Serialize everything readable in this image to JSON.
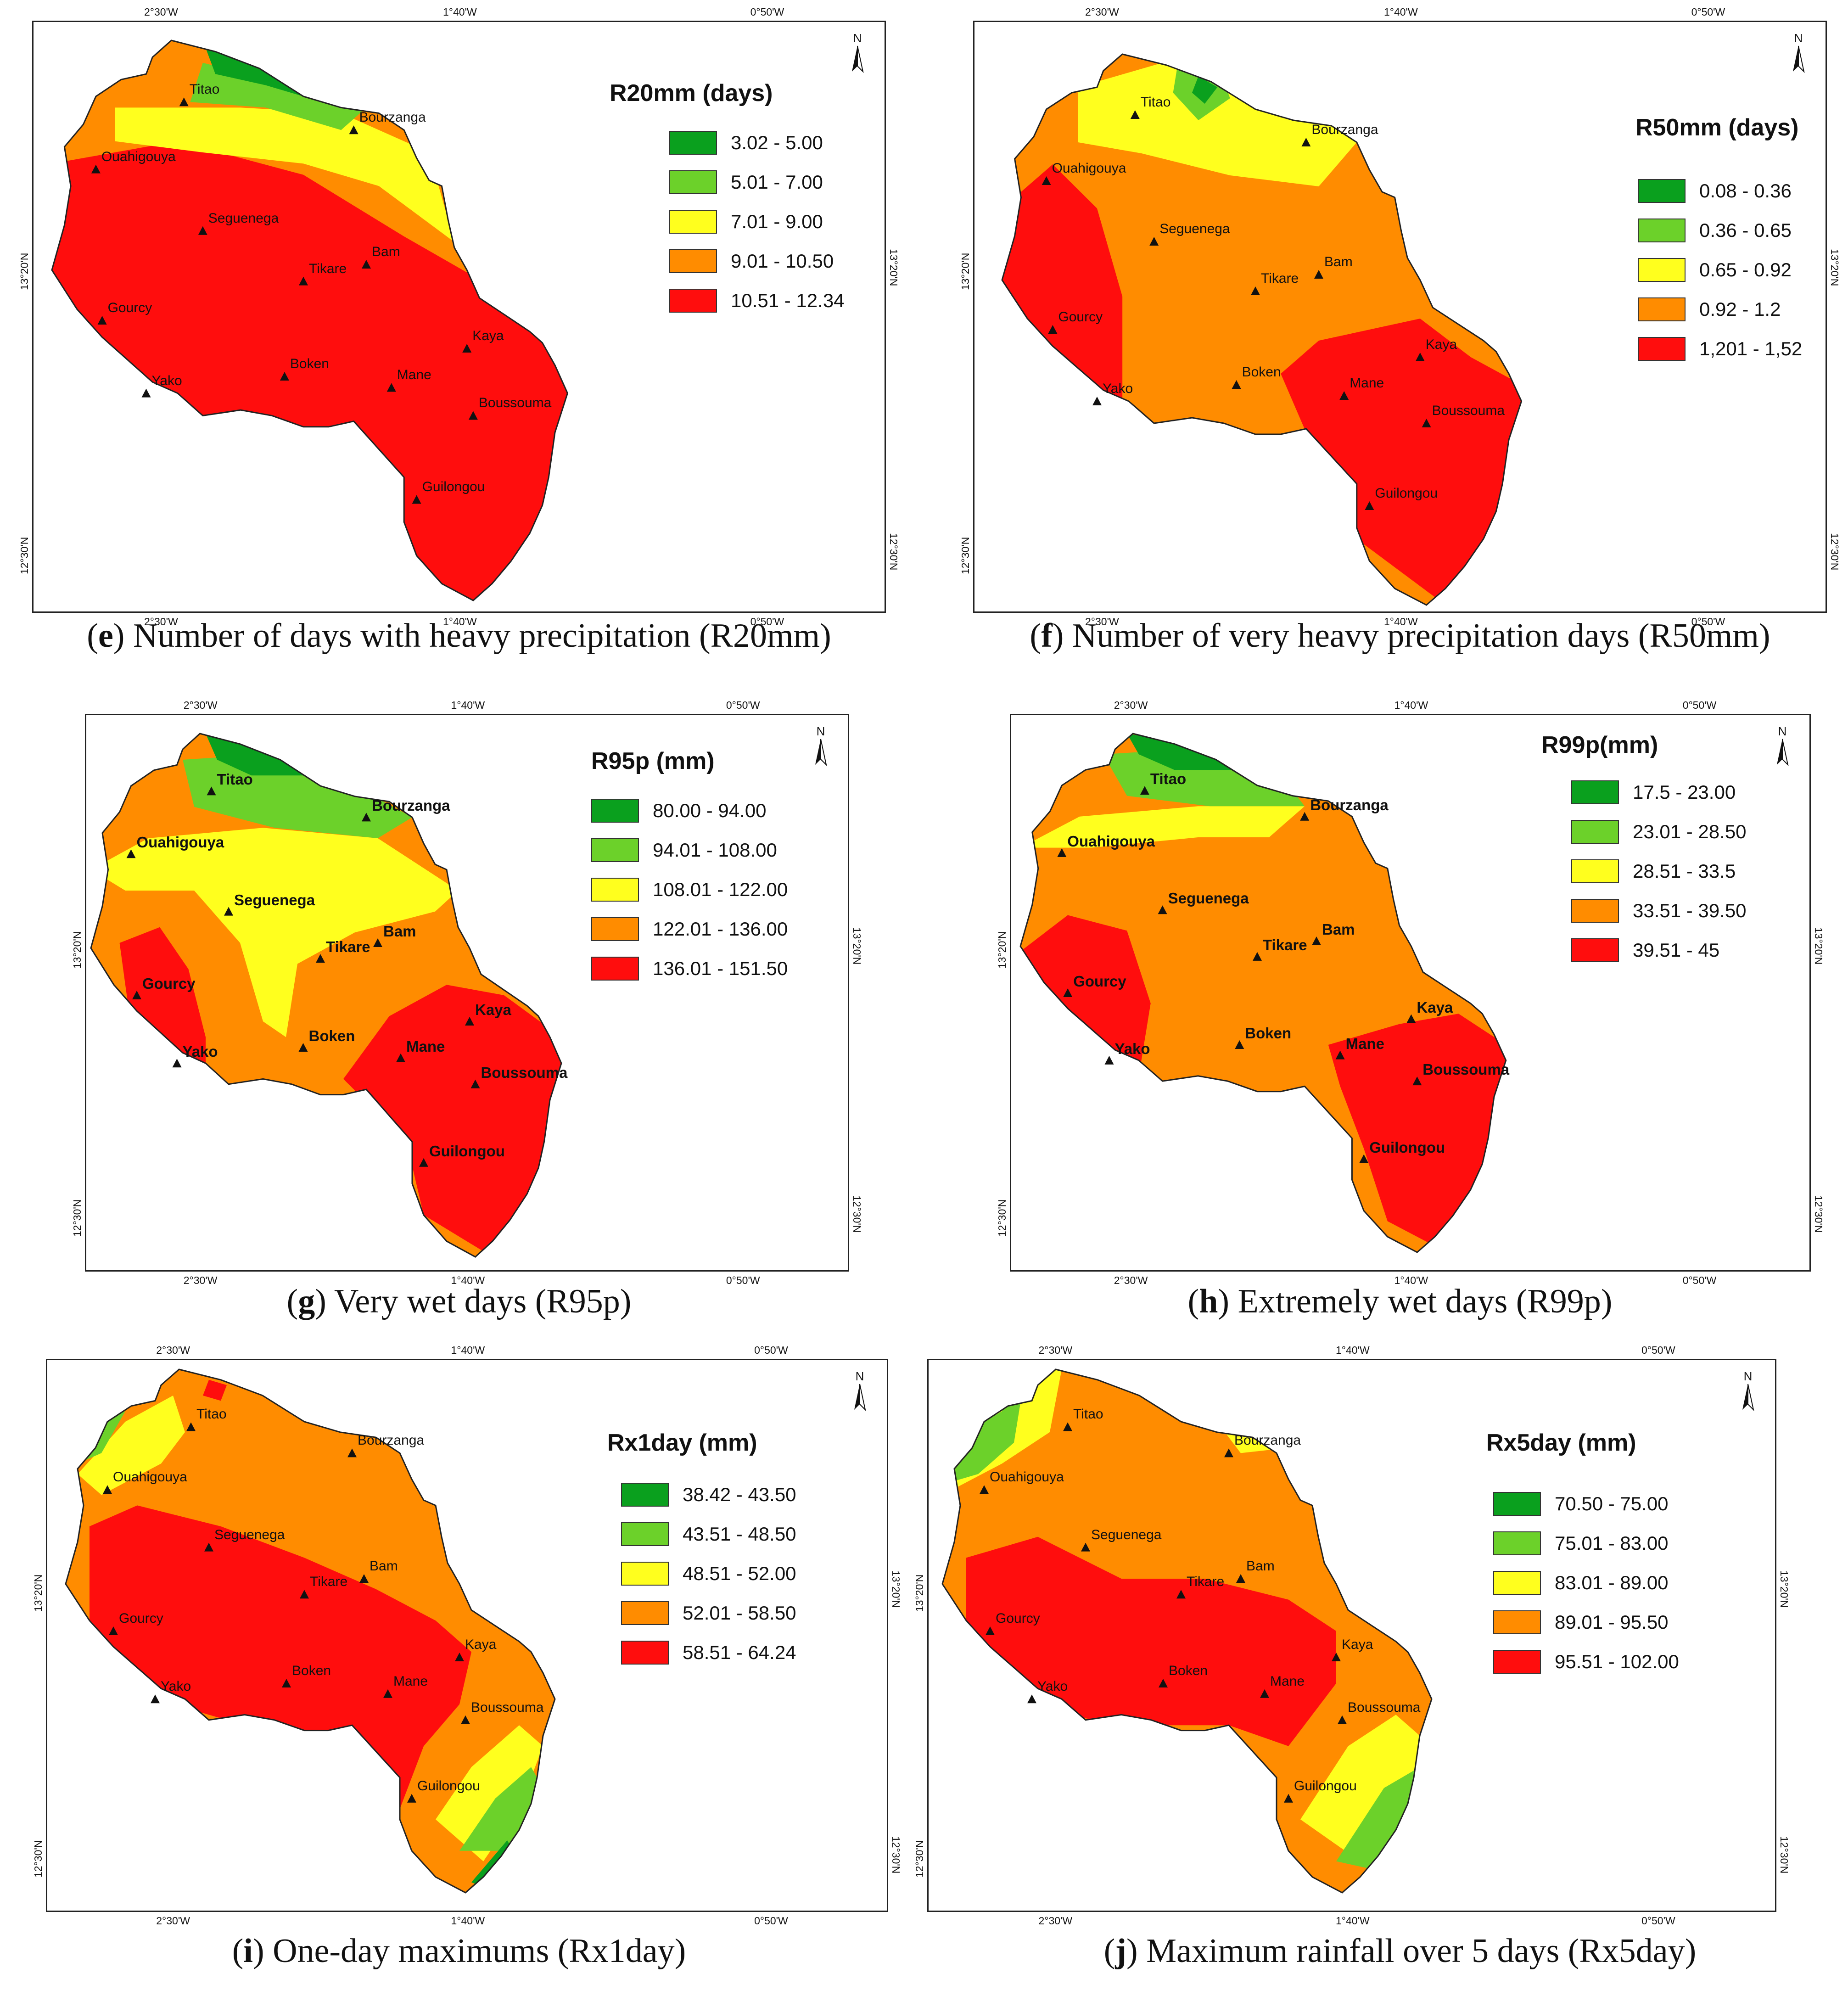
{
  "colors": {
    "dark_green": "#0aa01e",
    "light_green": "#6cd12a",
    "yellow": "#ffff1e",
    "orange": "#ff8c00",
    "red": "#ff0d0d",
    "outline": "#222222"
  },
  "icons": {
    "north_arrow": "north-arrow-icon",
    "town_marker": "triangle-icon"
  },
  "panels": [
    {
      "id": "e",
      "legend_title": "R20mm (days)",
      "legend": [
        "3.02 - 5.00",
        "5.01 - 7.00",
        "7.01 - 9.00",
        "9.01 - 10.50",
        "10.51 - 12.34"
      ],
      "caption_letter": "e",
      "caption_text": " Number of days with heavy precipitation (R20mm)",
      "bold_labels": false,
      "lon_ticks": [
        "2°30'W",
        "1°40'W",
        "0°50'W"
      ],
      "lat_ticks": [
        "13°20'N",
        "12°30'N"
      ],
      "north": "N"
    },
    {
      "id": "f",
      "legend_title": "R50mm (days)",
      "legend": [
        "0.08 - 0.36",
        "0.36 - 0.65",
        "0.65 - 0.92",
        "0.92 - 1.2",
        "1,201 - 1,52"
      ],
      "caption_letter": "f",
      "caption_text": " Number of very heavy precipitation days (R50mm)",
      "bold_labels": false,
      "lon_ticks": [
        "2°30'W",
        "1°40'W",
        "0°50'W"
      ],
      "lat_ticks": [
        "13°20'N",
        "12°30'N"
      ],
      "north": "N"
    },
    {
      "id": "g",
      "legend_title": "R95p (mm)",
      "legend": [
        "80.00 - 94.00",
        "94.01 - 108.00",
        "108.01 - 122.00",
        "122.01 - 136.00",
        "136.01 - 151.50"
      ],
      "caption_letter": "g",
      "caption_text": " Very wet days (R95p)",
      "bold_labels": true,
      "lon_ticks": [
        "2°30'W",
        "1°40'W",
        "0°50'W"
      ],
      "lat_ticks": [
        "13°20'N",
        "12°30'N"
      ],
      "north": "N"
    },
    {
      "id": "h",
      "legend_title": "R99p(mm)",
      "legend": [
        "17.5 - 23.00",
        "23.01 - 28.50",
        "28.51 - 33.5",
        "33.51 - 39.50",
        "39.51 - 45"
      ],
      "caption_letter": "h",
      "caption_text": " Extremely wet days (R99p)",
      "bold_labels": true,
      "lon_ticks": [
        "2°30'W",
        "1°40'W",
        "0°50'W"
      ],
      "lat_ticks": [
        "13°20'N",
        "12°30'N"
      ],
      "north": "N"
    },
    {
      "id": "i",
      "legend_title": "Rx1day (mm)",
      "legend": [
        "38.42 - 43.50",
        "43.51 - 48.50",
        "48.51 - 52.00",
        "52.01 - 58.50",
        "58.51 - 64.24"
      ],
      "caption_letter": "i",
      "caption_text": " One-day maximums (Rx1day)",
      "bold_labels": false,
      "lon_ticks": [
        "2°30'W",
        "1°40'W",
        "0°50'W"
      ],
      "lat_ticks": [
        "13°20'N",
        "12°30'N"
      ],
      "north": "N"
    },
    {
      "id": "j",
      "legend_title": "Rx5day (mm)",
      "legend": [
        "70.50 - 75.00",
        "75.01 - 83.00",
        "83.01 - 89.00",
        "89.01 - 95.50",
        "95.51 - 102.00"
      ],
      "caption_letter": "j",
      "caption_text": " Maximum rainfall over 5 days (Rx5day)",
      "bold_labels": false,
      "lon_ticks": [
        "2°30'W",
        "1°40'W",
        "0°50'W"
      ],
      "lat_ticks": [
        "13°20'N",
        "12°30'N"
      ],
      "north": "N"
    }
  ],
  "towns": [
    "Titao",
    "Bourzanga",
    "Ouahigouya",
    "Seguenega",
    "Tikare",
    "Bam",
    "Gourcy",
    "Kaya",
    "Yako",
    "Boken",
    "Mane",
    "Boussouma",
    "Guilongou"
  ]
}
